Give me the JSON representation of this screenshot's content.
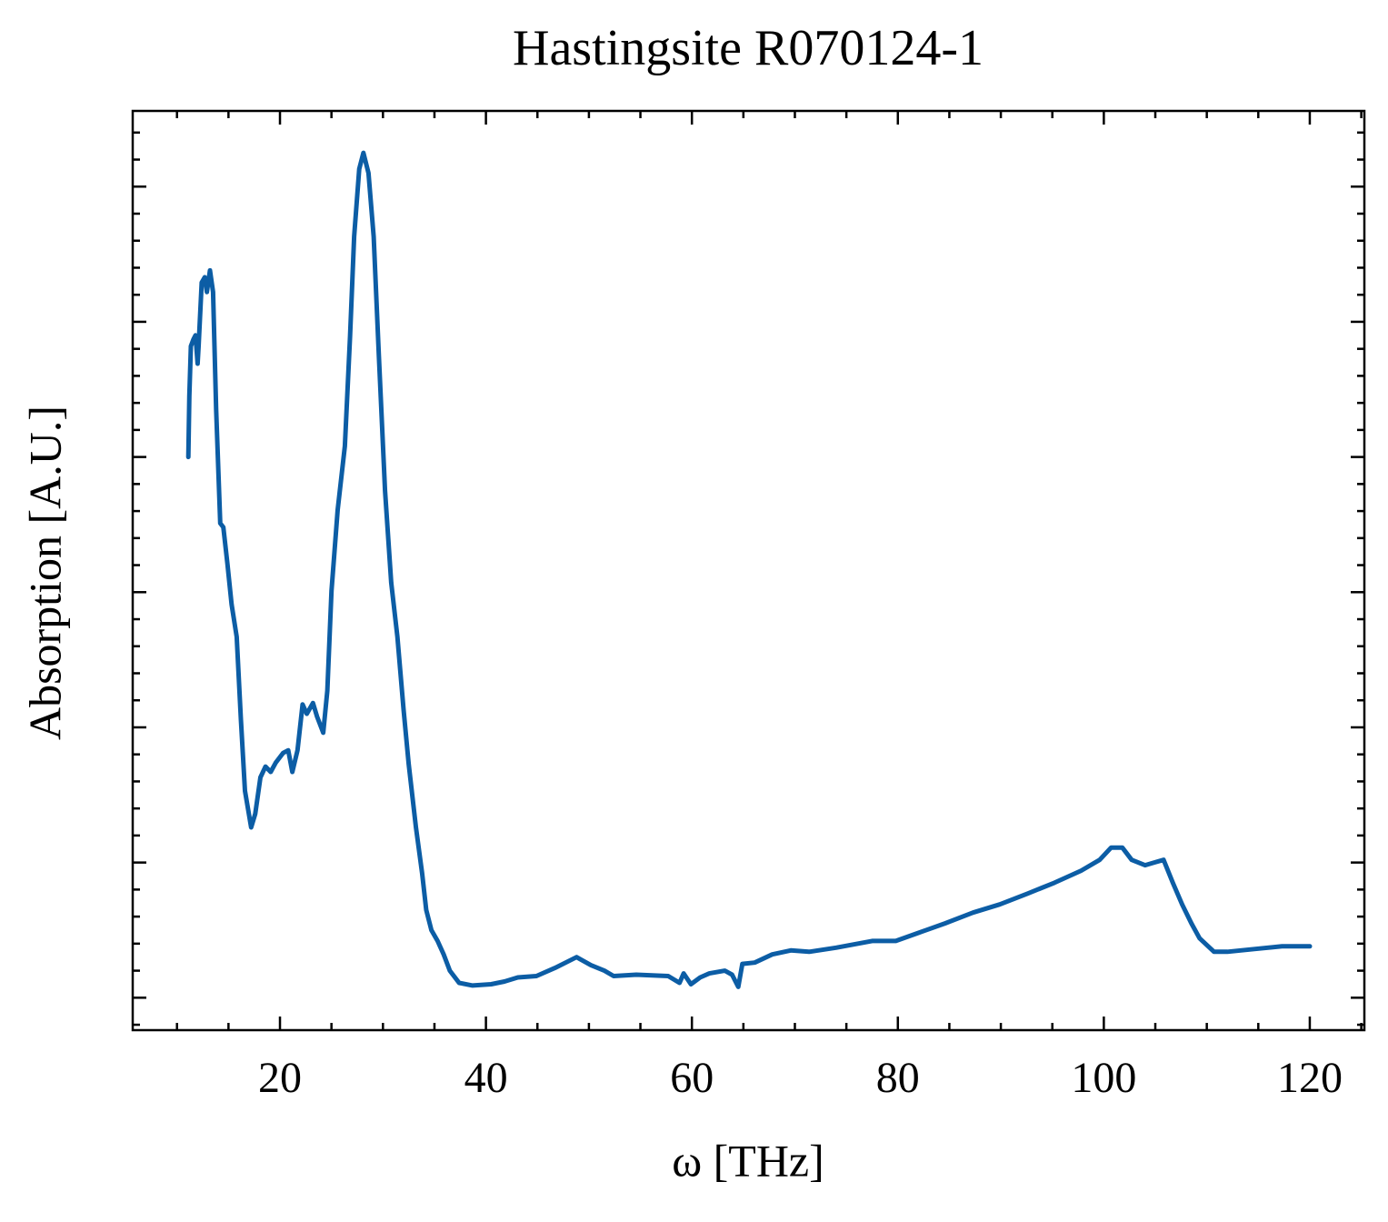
{
  "chart_data": {
    "type": "line",
    "title": "Hastingsite R070124-1",
    "xlabel": "ω [THz]",
    "ylabel": "Absorption [A.U.]",
    "xlim": [
      5.7,
      125.3
    ],
    "ylim": [
      -0.24,
      6.56
    ],
    "xticks": [
      20,
      40,
      60,
      80,
      100,
      120
    ],
    "yticks": [
      0,
      1,
      2,
      3,
      4,
      5,
      6
    ],
    "ytick_labels": false,
    "x_minor_per_major": 4,
    "y_minor_per_major": 5,
    "ticks_inside": true,
    "mirror_ticks": true,
    "series": [
      {
        "color": "#0c5da5",
        "x": [
          11.1,
          11.2,
          11.35,
          11.6,
          11.8,
          12.0,
          12.1,
          12.4,
          12.7,
          12.9,
          13.2,
          13.5,
          13.8,
          14.2,
          14.5,
          14.9,
          15.3,
          15.8,
          16.2,
          16.6,
          17.2,
          17.6,
          18.1,
          18.6,
          19.1,
          19.6,
          20.3,
          20.8,
          21.2,
          21.7,
          22.2,
          22.6,
          23.2,
          23.6,
          24.2,
          24.6,
          25.0,
          25.6,
          26.3,
          26.8,
          27.2,
          27.7,
          28.1,
          28.6,
          29.1,
          29.6,
          30.2,
          30.8,
          31.4,
          32.0,
          32.5,
          33.2,
          33.8,
          34.2,
          34.7,
          35.3,
          35.9,
          36.5,
          37.4,
          38.7,
          40.5,
          41.8,
          43.1,
          44.9,
          46.7,
          48.8,
          50.2,
          51.5,
          52.4,
          54.6,
          57.7,
          58.8,
          59.2,
          59.9,
          60.8,
          61.7,
          63.2,
          63.9,
          64.5,
          64.9,
          66.1,
          67.8,
          69.6,
          71.4,
          74.0,
          77.5,
          79.8,
          82.0,
          84.6,
          87.3,
          89.9,
          92.6,
          95.2,
          97.8,
          99.6,
          100.7,
          101.8,
          102.7,
          104.0,
          104.9,
          105.8,
          106.7,
          107.6,
          108.5,
          109.3,
          110.7,
          112.0,
          114.6,
          117.3,
          120.0
        ],
        "values": [
          4.0,
          4.45,
          4.82,
          4.87,
          4.9,
          4.69,
          4.82,
          5.29,
          5.33,
          5.22,
          5.38,
          5.22,
          4.35,
          3.51,
          3.48,
          3.21,
          2.91,
          2.67,
          2.06,
          1.53,
          1.26,
          1.36,
          1.63,
          1.71,
          1.67,
          1.74,
          1.81,
          1.83,
          1.67,
          1.83,
          2.17,
          2.1,
          2.18,
          2.08,
          1.96,
          2.27,
          3.01,
          3.61,
          4.08,
          4.89,
          5.63,
          6.13,
          6.25,
          6.1,
          5.63,
          4.75,
          3.75,
          3.07,
          2.67,
          2.13,
          1.73,
          1.26,
          0.92,
          0.65,
          0.5,
          0.42,
          0.32,
          0.2,
          0.11,
          0.09,
          0.1,
          0.12,
          0.15,
          0.16,
          0.22,
          0.3,
          0.24,
          0.2,
          0.16,
          0.17,
          0.16,
          0.11,
          0.18,
          0.1,
          0.15,
          0.18,
          0.2,
          0.17,
          0.08,
          0.25,
          0.26,
          0.32,
          0.35,
          0.34,
          0.37,
          0.42,
          0.42,
          0.48,
          0.55,
          0.63,
          0.69,
          0.77,
          0.85,
          0.94,
          1.02,
          1.11,
          1.11,
          1.02,
          0.98,
          1.0,
          1.02,
          0.85,
          0.69,
          0.55,
          0.44,
          0.34,
          0.34,
          0.36,
          0.38,
          0.38
        ]
      }
    ]
  }
}
